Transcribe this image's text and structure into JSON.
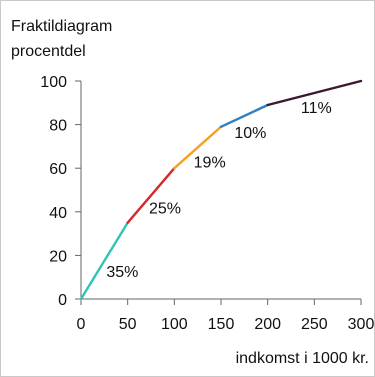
{
  "chart_data": {
    "type": "line",
    "title": "Fraktildiagram",
    "ylabel": "procentdel",
    "xlabel": "indkomst i 1000 kr.",
    "x_ticks": [
      "0",
      "50",
      "100",
      "150",
      "200",
      "250",
      "300"
    ],
    "y_ticks": [
      "0",
      "20",
      "40",
      "60",
      "80",
      "100"
    ],
    "xlim": [
      0,
      300
    ],
    "ylim": [
      0,
      100
    ],
    "grid": false,
    "points": [
      {
        "x": 0,
        "y": 0
      },
      {
        "x": 50,
        "y": 35
      },
      {
        "x": 100,
        "y": 60
      },
      {
        "x": 150,
        "y": 79
      },
      {
        "x": 200,
        "y": 89
      },
      {
        "x": 300,
        "y": 100
      }
    ],
    "segments": [
      {
        "from": 0,
        "to": 50,
        "label": "35%",
        "color": "#2ec4b6"
      },
      {
        "from": 50,
        "to": 100,
        "label": "25%",
        "color": "#d62828"
      },
      {
        "from": 100,
        "to": 150,
        "label": "19%",
        "color": "#f4a020"
      },
      {
        "from": 150,
        "to": 200,
        "label": "10%",
        "color": "#2f7fc1"
      },
      {
        "from": 200,
        "to": 300,
        "label": "11%",
        "color": "#3a1a30"
      }
    ]
  }
}
